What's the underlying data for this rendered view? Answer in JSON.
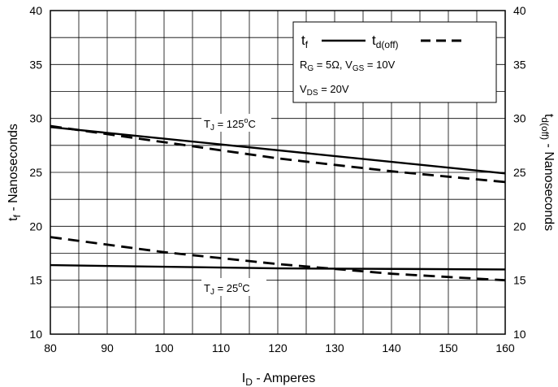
{
  "chart_data": {
    "type": "line",
    "xlabel": "I",
    "xlabel_sub": "D",
    "xlabel_rest": " - Amperes",
    "ylabel_left": "t",
    "ylabel_left_sub": "f",
    "ylabel_left_rest": " - Nanoseconds",
    "ylabel_right": "t",
    "ylabel_right_sub": "d(off)",
    "ylabel_right_rest": " - Nanoseconds",
    "xlim": [
      80,
      160
    ],
    "ylim": [
      10,
      40
    ],
    "x_ticks": [
      "80",
      "90",
      "100",
      "110",
      "120",
      "130",
      "140",
      "150",
      "160"
    ],
    "y_ticks": [
      "10",
      "15",
      "20",
      "25",
      "30",
      "35",
      "40"
    ],
    "grid": true,
    "legend": {
      "placement": "top-right",
      "tf": "t",
      "tf_sub": "f",
      "td": "t",
      "td_sub": "d(off)",
      "cond1": "R",
      "cond1_sub": "G",
      "cond1_mid": " = 5Ω, V",
      "cond1_sub2": "GS",
      "cond1_end": " = 10V",
      "cond2": "V",
      "cond2_sub": "DS",
      "cond2_end": " = 20V"
    },
    "annotations": [
      {
        "t": "T",
        "sub": "J",
        "mid": " = 125",
        "sup": "o",
        "end": "C"
      },
      {
        "t": "T",
        "sub": "J",
        "mid": " = 25",
        "sup": "o",
        "end": "C"
      }
    ],
    "series": [
      {
        "x": [
          80,
          160
        ],
        "y": [
          29.2,
          24.9
        ],
        "style": "solid"
      },
      {
        "x": [
          80,
          100,
          120,
          140,
          160
        ],
        "y": [
          29.3,
          27.8,
          26.3,
          25.1,
          24.1
        ],
        "style": "dashed"
      },
      {
        "x": [
          80,
          120,
          160
        ],
        "y": [
          16.4,
          16.1,
          16.0
        ],
        "style": "solid"
      },
      {
        "x": [
          80,
          100,
          120,
          140,
          160
        ],
        "y": [
          19.0,
          17.6,
          16.5,
          15.6,
          15.0
        ],
        "style": "dashed"
      }
    ]
  }
}
